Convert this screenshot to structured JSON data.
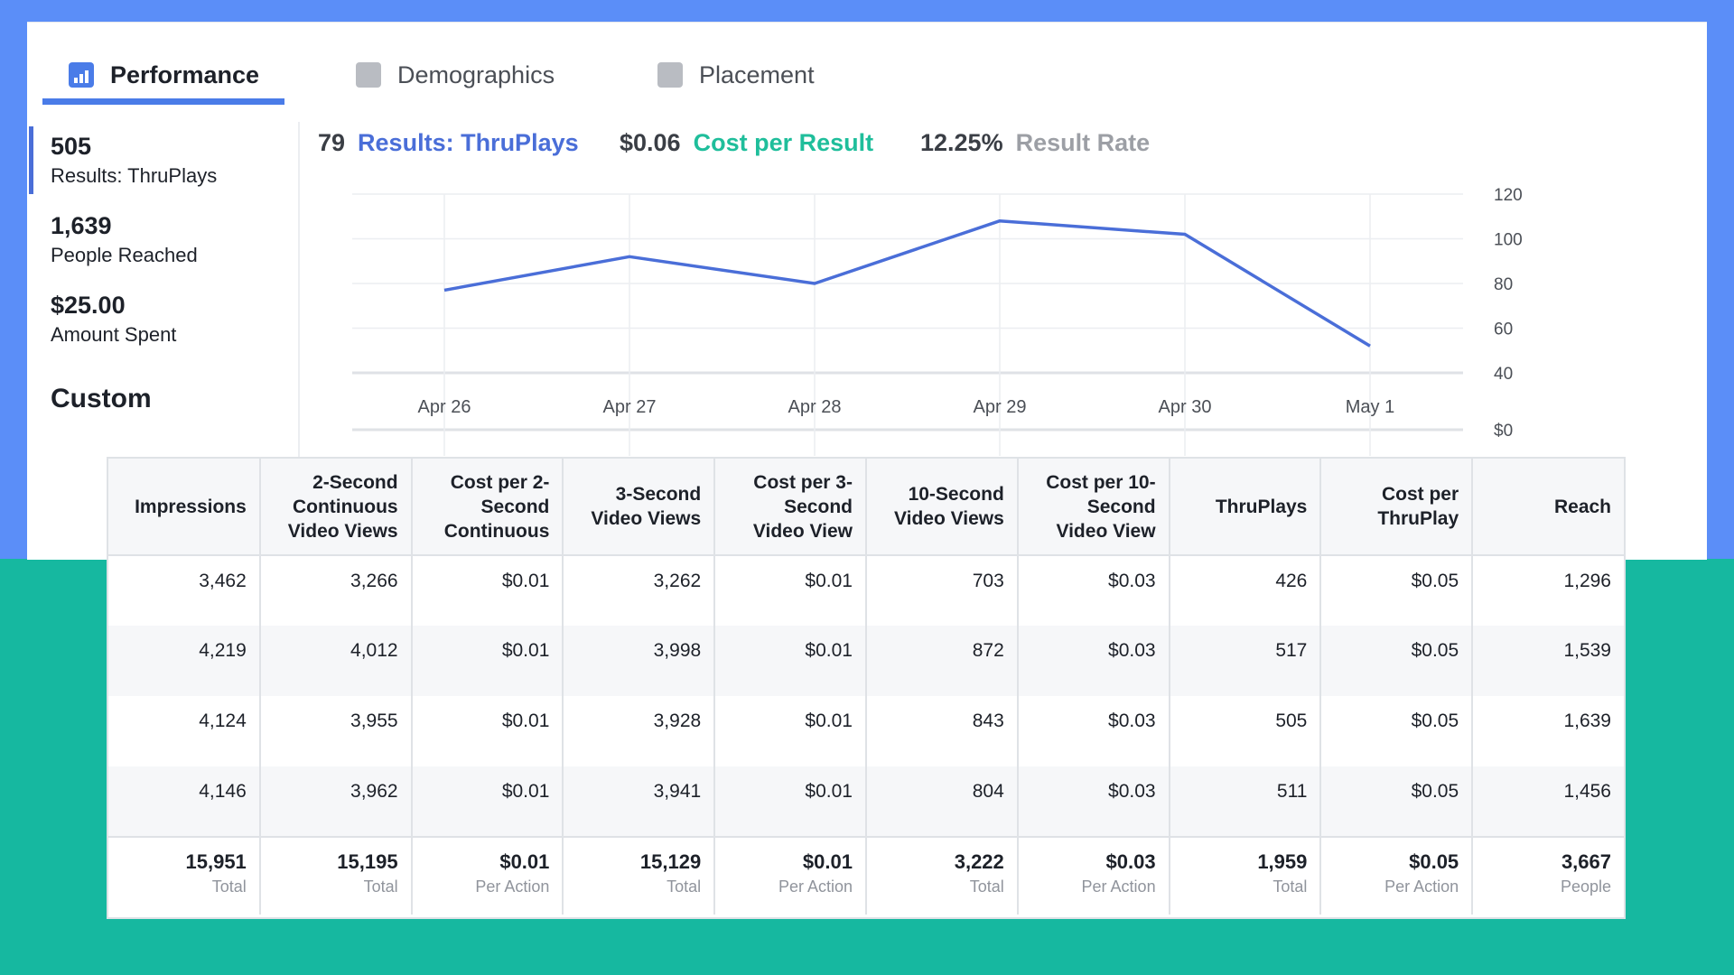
{
  "tabs": [
    {
      "label": "Performance",
      "icon": "bar-chart-icon"
    },
    {
      "label": "Demographics",
      "icon": "people-icon"
    },
    {
      "label": "Placement",
      "icon": "placement-icon"
    }
  ],
  "metrics": [
    {
      "value": "505",
      "label": "Results: ThruPlays"
    },
    {
      "value": "1,639",
      "label": "People Reached"
    },
    {
      "value": "$25.00",
      "label": "Amount Spent"
    }
  ],
  "custom_label": "Custom",
  "summary": {
    "results_value": "79",
    "results_label": "Results: ThruPlays",
    "cost_value": "$0.06",
    "cost_label": "Cost per Result",
    "rate_value": "12.25%",
    "rate_label": "Result Rate"
  },
  "chart_data": {
    "type": "line",
    "categories": [
      "Apr 26",
      "Apr 27",
      "Apr 28",
      "Apr 29",
      "Apr 30",
      "May 1"
    ],
    "values": [
      77,
      92,
      80,
      108,
      102,
      52
    ],
    "y_ticks": [
      "120",
      "100",
      "80",
      "60",
      "40"
    ],
    "y_ticks_lower": [
      "$0"
    ],
    "ylim": [
      40,
      120
    ],
    "color": "#4a6ed8",
    "grid": true
  },
  "table": {
    "headers": [
      "Impressions",
      "2-Second Continuous Video Views",
      "Cost per 2-Second Continuous",
      "3-Second Video Views",
      "Cost per 3-Second Video View",
      "10-Second Video Views",
      "Cost per 10-Second Video View",
      "ThruPlays",
      "Cost per ThruPlay",
      "Reach"
    ],
    "rows": [
      [
        "3,462",
        "3,266",
        "$0.01",
        "3,262",
        "$0.01",
        "703",
        "$0.03",
        "426",
        "$0.05",
        "1,296"
      ],
      [
        "4,219",
        "4,012",
        "$0.01",
        "3,998",
        "$0.01",
        "872",
        "$0.03",
        "517",
        "$0.05",
        "1,539"
      ],
      [
        "4,124",
        "3,955",
        "$0.01",
        "3,928",
        "$0.01",
        "843",
        "$0.03",
        "505",
        "$0.05",
        "1,639"
      ],
      [
        "4,146",
        "3,962",
        "$0.01",
        "3,941",
        "$0.01",
        "804",
        "$0.03",
        "511",
        "$0.05",
        "1,456"
      ]
    ],
    "totals": [
      {
        "value": "15,951",
        "sub": "Total"
      },
      {
        "value": "15,195",
        "sub": "Total"
      },
      {
        "value": "$0.01",
        "sub": "Per Action"
      },
      {
        "value": "15,129",
        "sub": "Total"
      },
      {
        "value": "$0.01",
        "sub": "Per Action"
      },
      {
        "value": "3,222",
        "sub": "Total"
      },
      {
        "value": "$0.03",
        "sub": "Per Action"
      },
      {
        "value": "1,959",
        "sub": "Total"
      },
      {
        "value": "$0.05",
        "sub": "Per Action"
      },
      {
        "value": "3,667",
        "sub": "People"
      }
    ]
  }
}
